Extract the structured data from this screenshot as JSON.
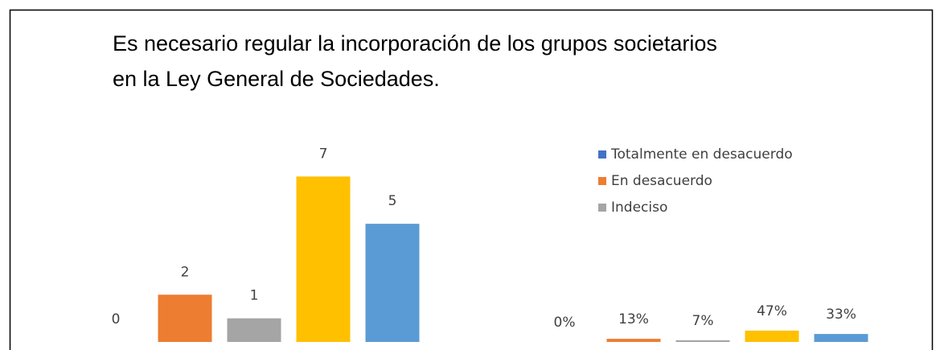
{
  "chart_data": [
    {
      "type": "bar",
      "title": [
        "Es necesario regular la incorporación de los grupos societarios",
        "en la Ley General de Sociedades."
      ],
      "values": [
        0,
        2,
        1,
        7,
        5
      ],
      "colors": [
        "#4472c4",
        "#ed7d31",
        "#a5a5a5",
        "#ffc000",
        "#5b9bd5"
      ],
      "ylim": [
        0,
        8
      ]
    },
    {
      "type": "bar",
      "categories": [
        "Totalmente en desacuerdo",
        "En desacuerdo",
        "Indeciso",
        null,
        null
      ],
      "values": [
        0,
        13,
        7,
        47,
        33
      ],
      "value_labels": [
        "0%",
        "13%",
        "7%",
        "47%",
        "33%"
      ],
      "colors": [
        "#4472c4",
        "#ed7d31",
        "#a5a5a5",
        "#ffc000",
        "#5b9bd5"
      ],
      "ylim": [
        0,
        100
      ],
      "legend": "right"
    }
  ]
}
